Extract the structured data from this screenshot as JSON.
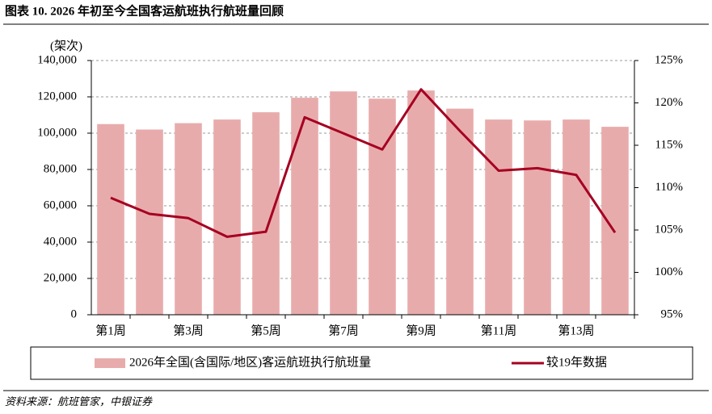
{
  "chart_data": {
    "type": "bar",
    "title": "图表 10. 2026 年初至今全国客运航班执行航班量回顾",
    "ylabel": "(架次)",
    "categories": [
      "第1周",
      null,
      "第3周",
      null,
      "第5周",
      null,
      "第7周",
      null,
      "第9周",
      null,
      "第11周",
      null,
      "第13周",
      null
    ],
    "series": [
      {
        "name": "2026年全国(含国际/地区)客运航班执行航班量",
        "type": "bar",
        "color": "#e8abab",
        "values": [
          105000,
          102000,
          105500,
          107500,
          111500,
          119500,
          123000,
          119000,
          123500,
          113500,
          107500,
          107000,
          107500,
          103500
        ]
      },
      {
        "name": "较19年数据",
        "type": "line",
        "axis": "y2",
        "color": "#a50021",
        "values": [
          108.8,
          106.9,
          106.4,
          104.2,
          104.8,
          118.3,
          116.4,
          114.5,
          121.6,
          116.7,
          112.0,
          112.3,
          111.5,
          104.7
        ]
      }
    ],
    "ylim": [
      0,
      140000
    ],
    "yticks": [
      0,
      {
        "value": 20000,
        "label": "20,000"
      },
      {
        "value": 40000,
        "label": "40,000"
      },
      {
        "value": 60000,
        "label": "60,000"
      },
      {
        "value": 80000,
        "label": "80,000"
      },
      {
        "value": 100000,
        "label": "100,000"
      },
      {
        "value": 120000,
        "label": "120,000"
      },
      {
        "value": 140000,
        "label": "140,000"
      }
    ],
    "y2lim": [
      95,
      125
    ],
    "y2ticks": [
      {
        "value": 95,
        "label": "95%"
      },
      {
        "value": 100,
        "label": "100%"
      },
      {
        "value": 105,
        "label": "105%"
      },
      {
        "value": 110,
        "label": "110%"
      },
      {
        "value": 115,
        "label": "115%"
      },
      {
        "value": 120,
        "label": "120%"
      },
      {
        "value": 125,
        "label": "125%"
      }
    ],
    "grid": true,
    "legend": "bottom",
    "source": "资料来源：航班管家，中银证券"
  }
}
